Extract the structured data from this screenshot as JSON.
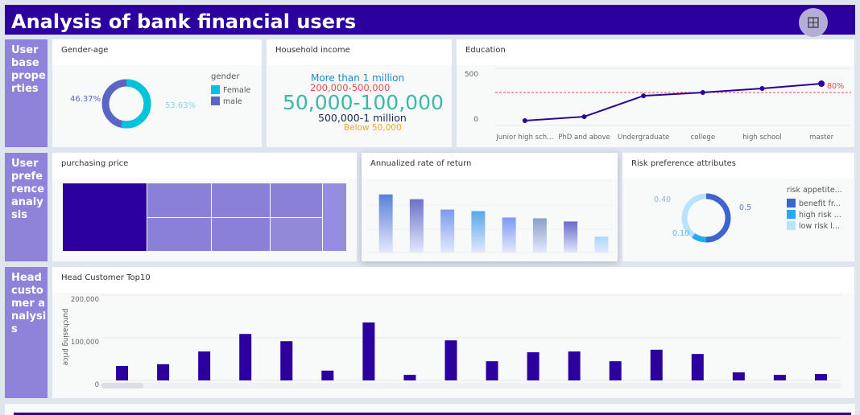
{
  "header": {
    "title": "Analysis of bank financial users",
    "fullscreen_icon": "compress-icon"
  },
  "sections": [
    {
      "label": "User base properties"
    },
    {
      "label": "User preference analysis"
    },
    {
      "label": "Head customer analysis"
    }
  ],
  "gender_age": {
    "title": "Gender-age",
    "legend_title": "gender",
    "slices": [
      {
        "name": "Female",
        "value": 53.63,
        "label": "53.63%",
        "color": "#00c3dc"
      },
      {
        "name": "male",
        "value": 46.37,
        "label": "46.37%",
        "color": "#5b65c4"
      }
    ]
  },
  "household_income": {
    "title": "Household income",
    "words": [
      {
        "text": "More than 1 million",
        "color": "#1e88d0"
      },
      {
        "text": "200,000-500,000",
        "color": "#f04848"
      },
      {
        "text": "50,000-100,000",
        "color": "#3cb8a8"
      },
      {
        "text": "500,000-1 million",
        "color": "#1a2a50"
      },
      {
        "text": "Below 50,000",
        "color": "#f5a623"
      }
    ]
  },
  "education": {
    "title": "Education",
    "chart_data": {
      "type": "line",
      "categories": [
        "Junior high sch...",
        "PhD and above",
        "Undergraduate",
        "college",
        "high school",
        "master"
      ],
      "values": [
        42,
        77,
        260,
        289,
        324,
        366
      ],
      "ylim": [
        0,
        500
      ],
      "yticks": [
        "500",
        "0"
      ],
      "reference_line": {
        "label": "80%",
        "value": 289,
        "color": "#f04848"
      },
      "color": "#2b009e"
    }
  },
  "purchasing_price": {
    "title": "purchasing price",
    "chart_data": {
      "type": "treemap",
      "color_main": "#2b009e",
      "color_rest": "#8a80d8"
    }
  },
  "annualized": {
    "title": "Annualized rate of return",
    "chart_data": {
      "type": "bar",
      "values": [
        73,
        67,
        54,
        52,
        44,
        43,
        39,
        20
      ],
      "colors": [
        "#5b7fd8",
        "#6a72c8",
        "#7b9af0",
        "#56a8e8",
        "#7b9af0",
        "#8aa0c8",
        "#6a6ac8",
        "#a8d8fa"
      ]
    }
  },
  "risk": {
    "title": "Risk preference attributes",
    "legend_title": "risk appetite...",
    "chart_data": {
      "type": "pie",
      "slices": [
        {
          "name": "benefit fr...",
          "value": 0.5,
          "label": "0.5",
          "color": "#3e64d0"
        },
        {
          "name": "high risk ...",
          "value": 0.1,
          "label": "0.10",
          "color": "#22aaf5"
        },
        {
          "name": "low risk l...",
          "value": 0.4,
          "label": "0.40",
          "color": "#b8e2fd"
        }
      ]
    }
  },
  "head_customer": {
    "title": "Head Customer Top10",
    "chart_data": {
      "type": "bar",
      "ylabel": "purchasing price",
      "yticks": [
        "200,000",
        "100,000",
        "0"
      ],
      "ylim": [
        0,
        200000
      ],
      "values": [
        34000,
        38000,
        68000,
        109000,
        92000,
        23000,
        136000,
        13000,
        94000,
        45000,
        66000,
        68000,
        45000,
        72000,
        62000,
        19000,
        13000,
        15000
      ],
      "color": "#2b009e"
    }
  }
}
